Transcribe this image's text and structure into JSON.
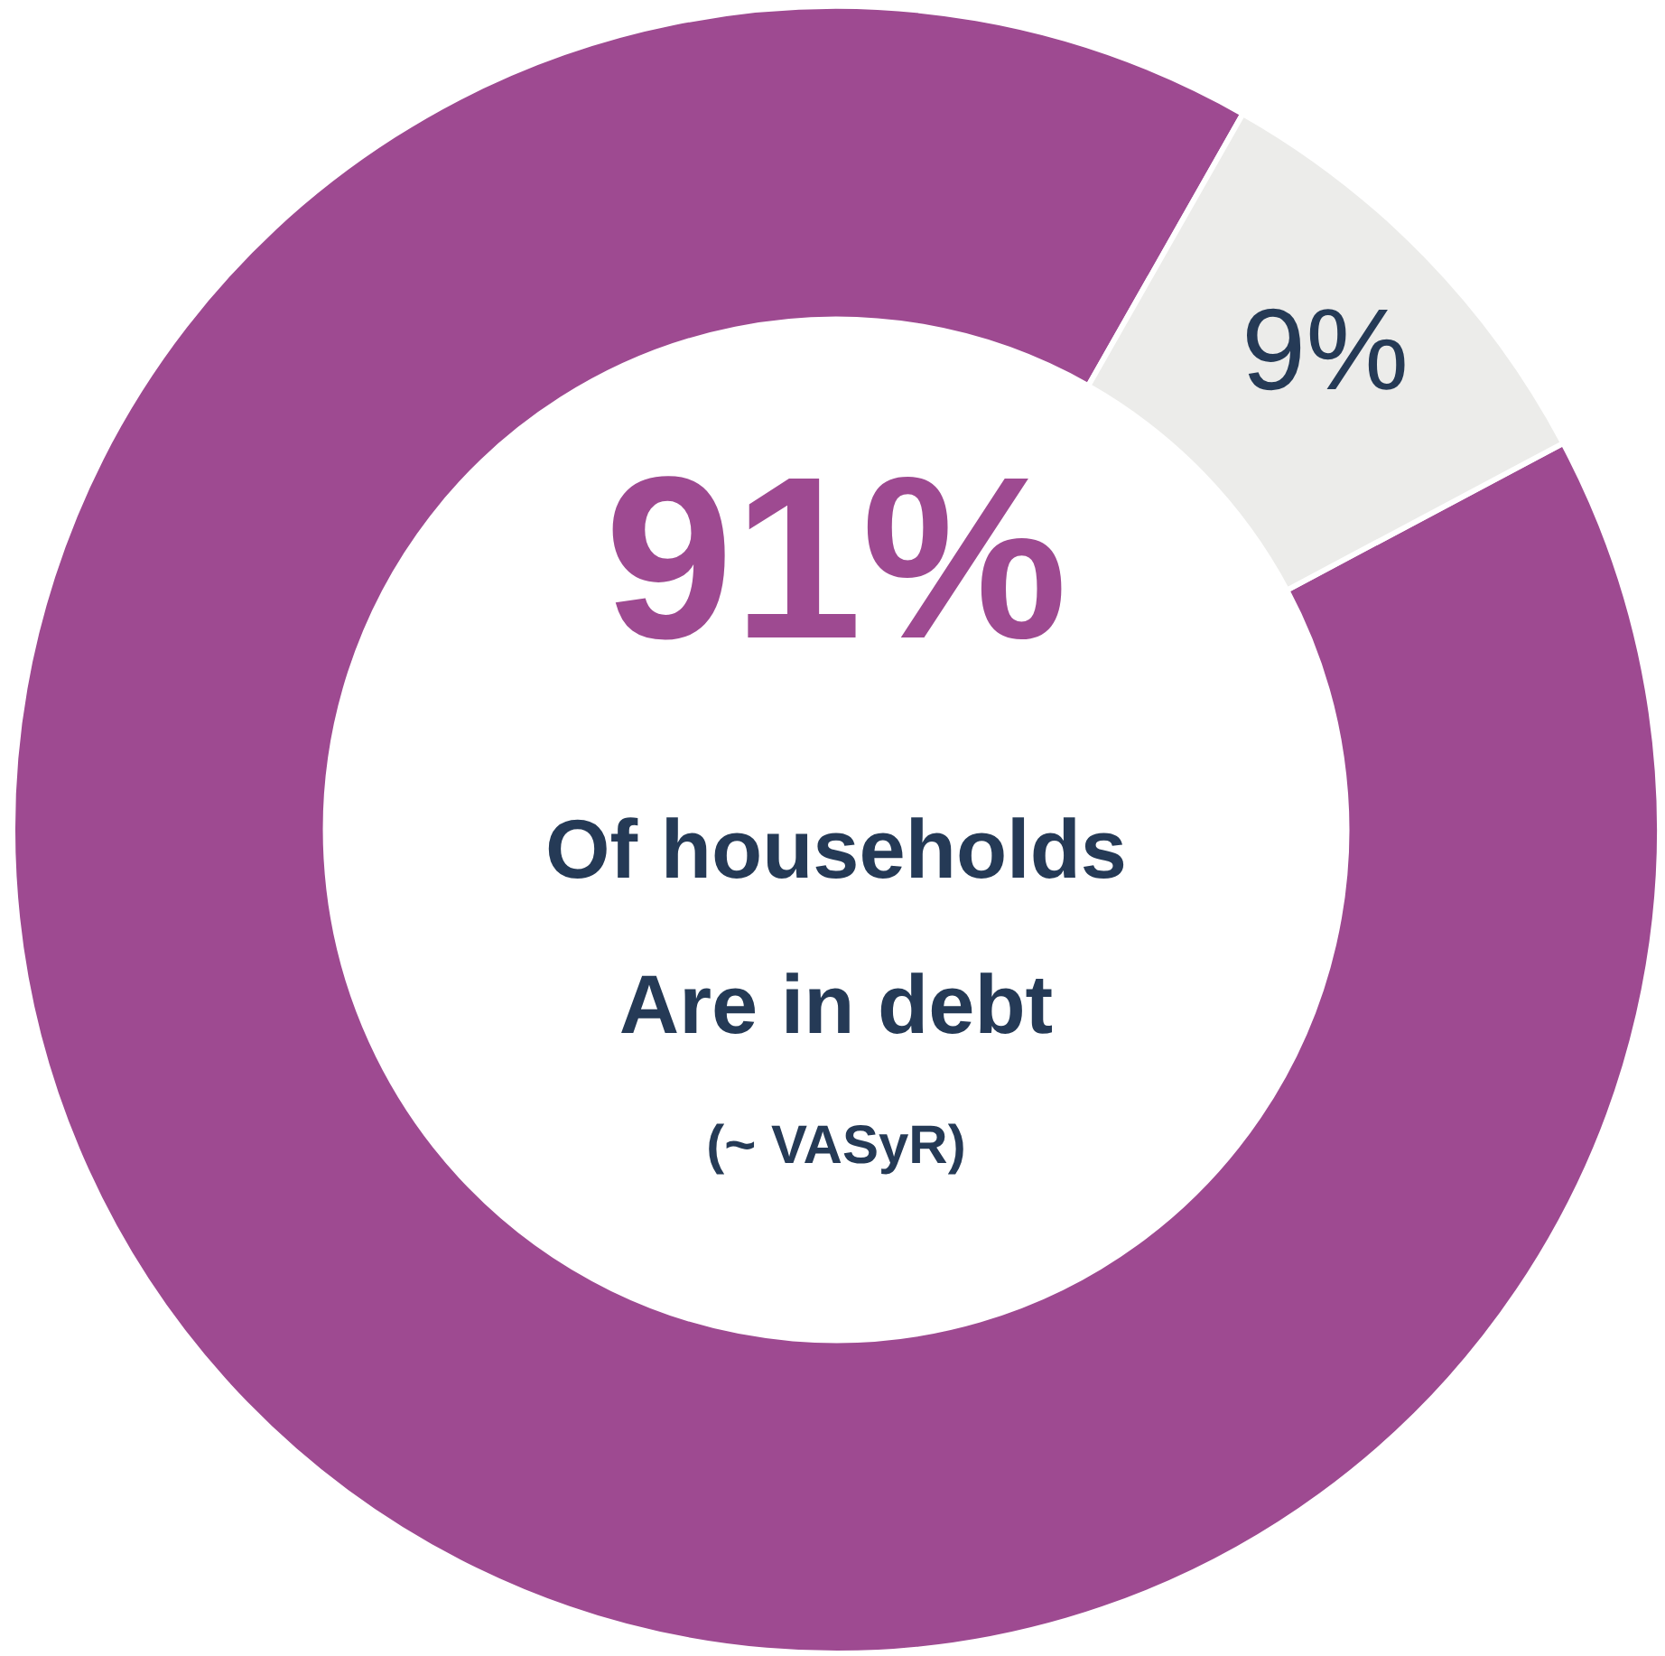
{
  "chart_data": {
    "type": "donut",
    "categories": [
      null,
      null
    ],
    "values": [
      91,
      9
    ],
    "colors": [
      "#9e4a91",
      "#ececea"
    ],
    "value_labels": [
      "91%",
      "9%"
    ],
    "annotations": [
      "Of households",
      "Are in debt",
      "(~ VASyR)"
    ],
    "legend": false
  }
}
